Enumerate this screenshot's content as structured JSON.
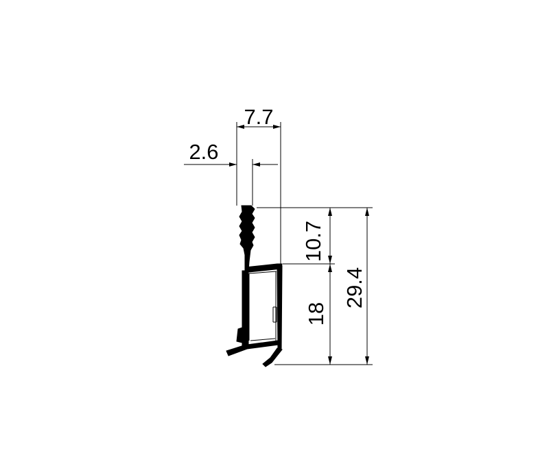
{
  "dimensions": {
    "overall_width": "7.7",
    "fin_width": "2.6",
    "top_height": "10.7",
    "body_height": "18",
    "total_height": "29.4"
  },
  "colors": {
    "line": "#000000",
    "background": "#ffffff"
  }
}
